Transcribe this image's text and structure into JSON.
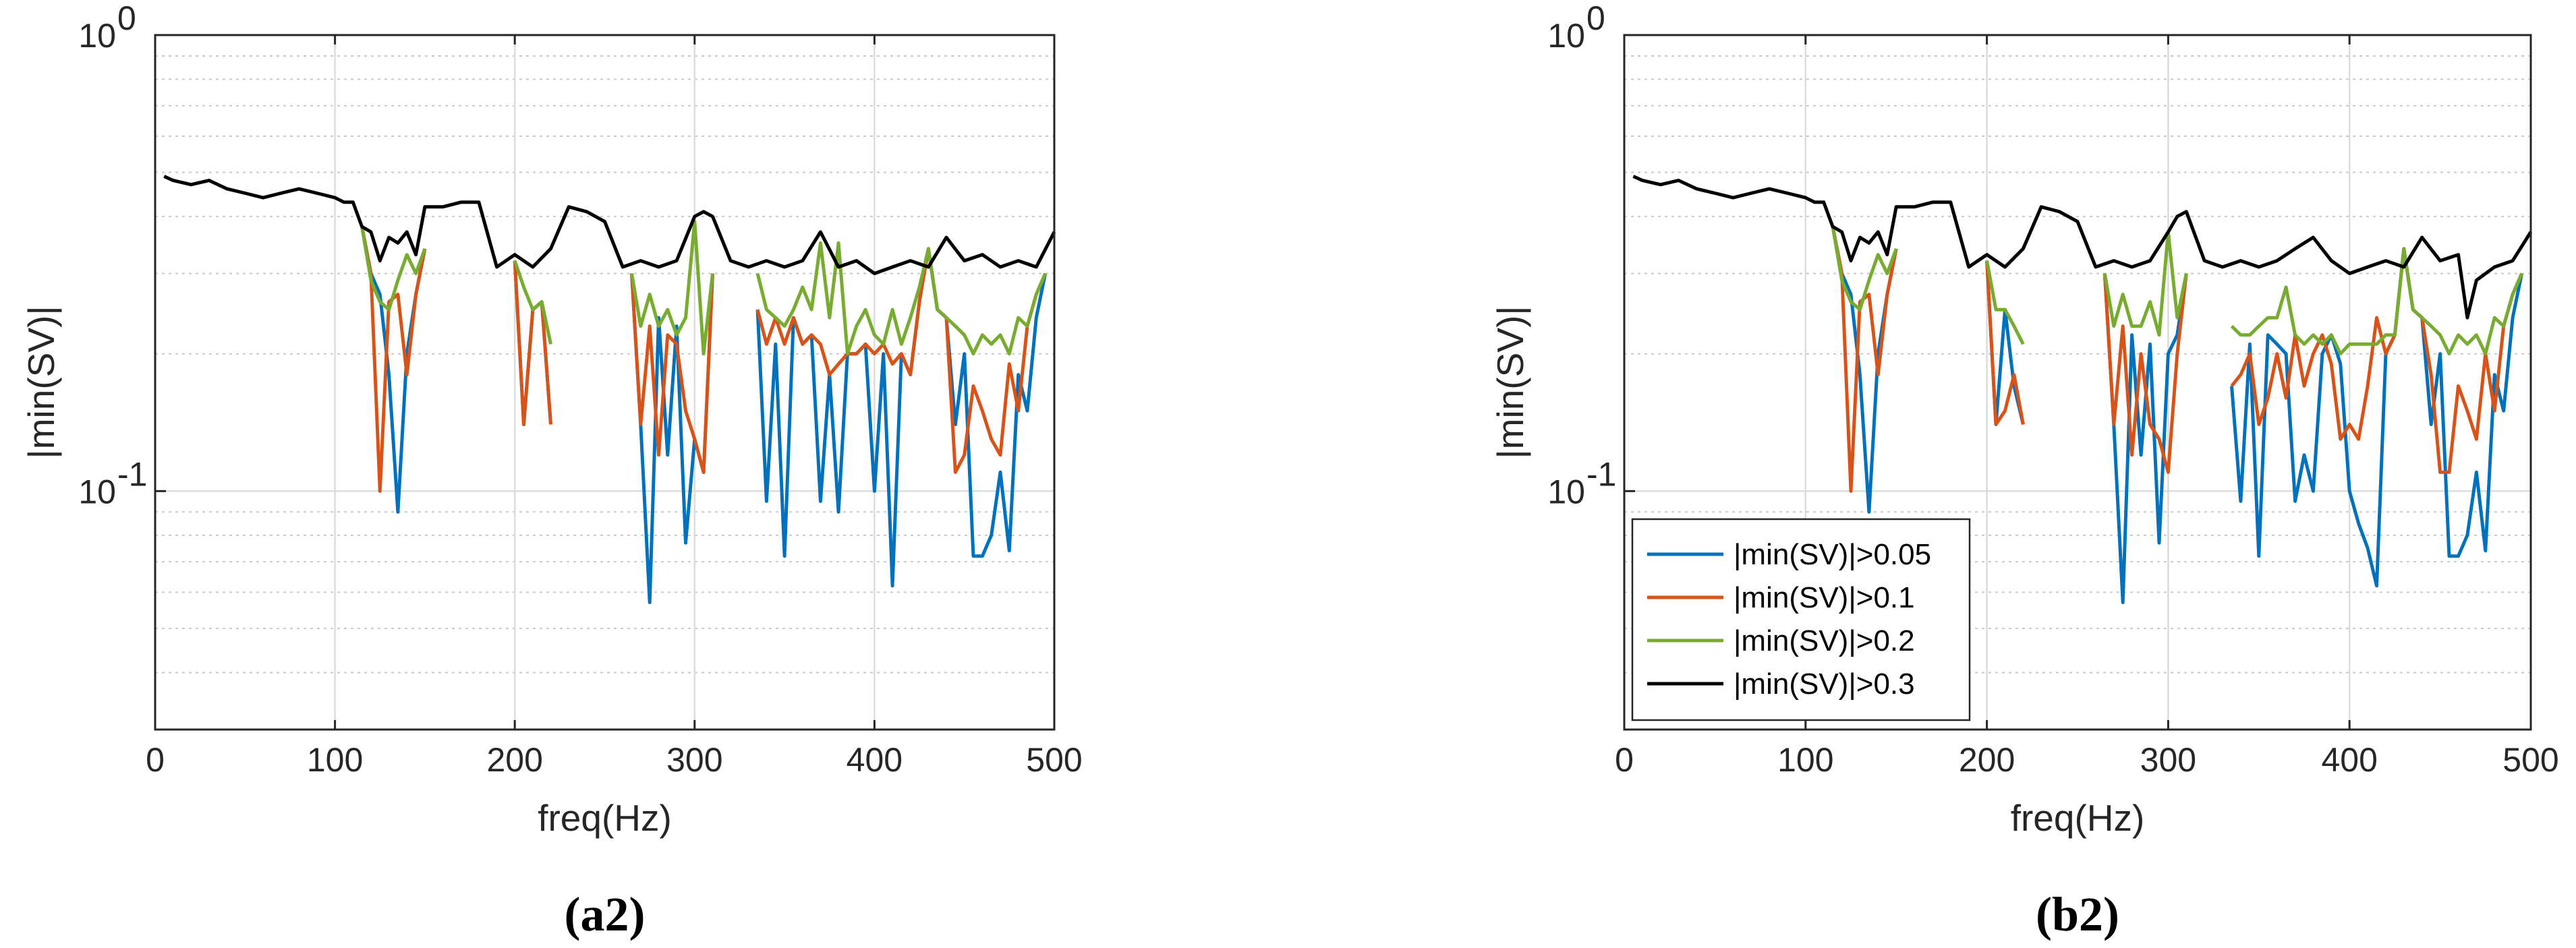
{
  "chart_data": [
    {
      "type": "line",
      "panel_label": "(a2)",
      "xlabel": "freq(Hz)",
      "ylabel": "|min(SV)|",
      "xlim": [
        0,
        500
      ],
      "ylim": [
        0.03,
        1
      ],
      "yscale": "log",
      "xticks": [
        0,
        100,
        200,
        300,
        400,
        500
      ],
      "yticks": [
        {
          "value": 0.1,
          "base": "10",
          "exp": "-1"
        },
        {
          "value": 1,
          "base": "10",
          "exp": "0"
        }
      ],
      "grid": true,
      "legend": null,
      "series": [
        {
          "name": "|min(SV)|>0.05",
          "color": "#0072BD",
          "x": [
            115,
            120,
            125,
            130,
            135,
            140,
            145,
            150,
            null,
            200,
            205,
            210,
            215,
            220,
            null,
            265,
            270,
            275,
            280,
            285,
            290,
            295,
            300,
            305,
            310,
            null,
            335,
            340,
            345,
            350,
            355,
            360,
            365,
            370,
            375,
            380,
            385,
            390,
            395,
            400,
            405,
            410,
            415,
            420,
            425,
            430,
            435,
            440,
            445,
            450,
            455,
            460,
            465,
            470,
            475,
            480,
            485,
            490,
            495
          ],
          "y": [
            0.38,
            0.3,
            0.27,
            0.18,
            0.09,
            0.2,
            0.27,
            0.34,
            null,
            0.32,
            0.14,
            0.25,
            0.26,
            0.14,
            null,
            0.3,
            0.14,
            0.057,
            0.24,
            0.12,
            0.23,
            0.077,
            0.13,
            0.11,
            0.3,
            null,
            0.25,
            0.095,
            0.21,
            0.072,
            0.24,
            0.21,
            0.22,
            0.095,
            0.18,
            0.09,
            0.2,
            0.2,
            0.21,
            0.1,
            0.2,
            0.062,
            0.2,
            0.18,
            0.26,
            0.34,
            0.25,
            0.24,
            0.14,
            0.2,
            0.072,
            0.072,
            0.08,
            0.11,
            0.074,
            0.18,
            0.15,
            0.24,
            0.3
          ]
        },
        {
          "name": "|min(SV)|>0.1",
          "color": "#D95319",
          "x": [
            115,
            120,
            125,
            130,
            135,
            140,
            145,
            150,
            null,
            200,
            205,
            210,
            215,
            220,
            null,
            265,
            270,
            275,
            280,
            285,
            290,
            295,
            300,
            305,
            310,
            null,
            335,
            340,
            345,
            350,
            355,
            360,
            365,
            370,
            375,
            380,
            385,
            390,
            395,
            400,
            405,
            410,
            415,
            420,
            425,
            430,
            435,
            440,
            445,
            450,
            455,
            460,
            465,
            470,
            475,
            480,
            485,
            490,
            495
          ],
          "y": [
            0.38,
            0.3,
            0.1,
            0.26,
            0.27,
            0.18,
            0.27,
            0.34,
            null,
            0.32,
            0.14,
            0.25,
            0.26,
            0.14,
            null,
            0.3,
            0.14,
            0.23,
            0.12,
            0.22,
            0.21,
            0.15,
            0.13,
            0.11,
            0.3,
            null,
            0.25,
            0.21,
            0.24,
            0.21,
            0.24,
            0.21,
            0.22,
            0.21,
            0.18,
            0.19,
            0.2,
            0.2,
            0.21,
            0.2,
            0.21,
            0.19,
            0.2,
            0.18,
            0.26,
            0.34,
            0.25,
            0.24,
            0.11,
            0.12,
            0.17,
            0.15,
            0.13,
            0.12,
            0.19,
            0.15,
            0.23,
            0.27,
            0.3
          ]
        },
        {
          "name": "|min(SV)|>0.2",
          "color": "#77AC30",
          "x": [
            115,
            120,
            125,
            130,
            135,
            140,
            145,
            150,
            null,
            200,
            205,
            210,
            215,
            220,
            null,
            265,
            270,
            275,
            280,
            285,
            290,
            295,
            300,
            305,
            310,
            null,
            335,
            340,
            345,
            350,
            355,
            360,
            365,
            370,
            375,
            380,
            385,
            390,
            395,
            400,
            405,
            410,
            415,
            420,
            425,
            430,
            435,
            440,
            445,
            450,
            455,
            460,
            465,
            470,
            475,
            480,
            485,
            490,
            495
          ],
          "y": [
            0.38,
            0.29,
            0.26,
            0.25,
            0.29,
            0.33,
            0.3,
            0.34,
            null,
            0.32,
            0.28,
            0.25,
            0.26,
            0.21,
            null,
            0.3,
            0.23,
            0.27,
            0.23,
            0.25,
            0.22,
            0.24,
            0.39,
            0.2,
            0.3,
            null,
            0.3,
            0.25,
            0.24,
            0.23,
            0.25,
            0.28,
            0.25,
            0.35,
            0.24,
            0.35,
            0.2,
            0.23,
            0.25,
            0.22,
            0.21,
            0.25,
            0.21,
            0.24,
            0.28,
            0.34,
            0.25,
            0.24,
            0.23,
            0.22,
            0.2,
            0.22,
            0.21,
            0.22,
            0.2,
            0.24,
            0.23,
            0.27,
            0.3
          ]
        },
        {
          "name": "|min(SV)|>0.3",
          "color": "#000000",
          "x": [
            5,
            10,
            20,
            30,
            40,
            50,
            60,
            70,
            80,
            90,
            100,
            105,
            110,
            115,
            120,
            125,
            130,
            135,
            140,
            145,
            150,
            160,
            170,
            180,
            190,
            200,
            210,
            220,
            230,
            240,
            250,
            260,
            270,
            280,
            290,
            300,
            305,
            310,
            320,
            330,
            340,
            350,
            360,
            370,
            380,
            390,
            400,
            410,
            420,
            430,
            440,
            450,
            460,
            470,
            480,
            490,
            500
          ],
          "y": [
            0.49,
            0.48,
            0.47,
            0.48,
            0.46,
            0.45,
            0.44,
            0.45,
            0.46,
            0.45,
            0.44,
            0.43,
            0.43,
            0.38,
            0.37,
            0.32,
            0.36,
            0.35,
            0.37,
            0.33,
            0.42,
            0.42,
            0.43,
            0.43,
            0.31,
            0.33,
            0.31,
            0.34,
            0.42,
            0.41,
            0.39,
            0.31,
            0.32,
            0.31,
            0.32,
            0.4,
            0.41,
            0.4,
            0.32,
            0.31,
            0.32,
            0.31,
            0.32,
            0.37,
            0.31,
            0.32,
            0.3,
            0.31,
            0.32,
            0.31,
            0.36,
            0.32,
            0.33,
            0.31,
            0.32,
            0.31,
            0.37
          ]
        }
      ]
    },
    {
      "type": "line",
      "panel_label": "(b2)",
      "xlabel": "freq(Hz)",
      "ylabel": "|min(SV)|",
      "xlim": [
        0,
        500
      ],
      "ylim": [
        0.03,
        1
      ],
      "yscale": "log",
      "xticks": [
        0,
        100,
        200,
        300,
        400,
        500
      ],
      "yticks": [
        {
          "value": 0.1,
          "base": "10",
          "exp": "-1"
        },
        {
          "value": 1,
          "base": "10",
          "exp": "0"
        }
      ],
      "grid": true,
      "legend": "bottom-left",
      "series": [
        {
          "name": "|min(SV)|>0.05",
          "color": "#0072BD",
          "x": [
            115,
            120,
            125,
            130,
            135,
            140,
            145,
            150,
            null,
            200,
            205,
            210,
            215,
            220,
            null,
            265,
            270,
            275,
            280,
            285,
            290,
            295,
            300,
            305,
            310,
            null,
            335,
            340,
            345,
            350,
            355,
            360,
            365,
            370,
            375,
            380,
            385,
            390,
            395,
            400,
            405,
            410,
            415,
            420,
            425,
            430,
            435,
            440,
            445,
            450,
            455,
            460,
            465,
            470,
            475,
            480,
            485,
            490,
            495
          ],
          "y": [
            0.38,
            0.3,
            0.27,
            0.18,
            0.09,
            0.2,
            0.27,
            0.34,
            null,
            0.32,
            0.14,
            0.25,
            0.17,
            0.14,
            null,
            0.3,
            0.14,
            0.057,
            0.22,
            0.12,
            0.21,
            0.077,
            0.2,
            0.22,
            0.3,
            null,
            0.17,
            0.095,
            0.21,
            0.072,
            0.22,
            0.21,
            0.2,
            0.095,
            0.12,
            0.1,
            0.2,
            0.22,
            0.19,
            0.1,
            0.085,
            0.075,
            0.062,
            0.2,
            0.22,
            0.34,
            0.25,
            0.24,
            0.14,
            0.2,
            0.072,
            0.072,
            0.08,
            0.11,
            0.074,
            0.18,
            0.15,
            0.24,
            0.3
          ]
        },
        {
          "name": "|min(SV)|>0.1",
          "color": "#D95319",
          "x": [
            115,
            120,
            125,
            130,
            135,
            140,
            145,
            150,
            null,
            200,
            205,
            210,
            215,
            220,
            null,
            265,
            270,
            275,
            280,
            285,
            290,
            295,
            300,
            305,
            310,
            null,
            335,
            340,
            345,
            350,
            355,
            360,
            365,
            370,
            375,
            380,
            385,
            390,
            395,
            400,
            405,
            410,
            415,
            420,
            425,
            430,
            435,
            440,
            445,
            450,
            455,
            460,
            465,
            470,
            475,
            480,
            485,
            490,
            495
          ],
          "y": [
            0.38,
            0.3,
            0.1,
            0.26,
            0.27,
            0.18,
            0.27,
            0.34,
            null,
            0.32,
            0.14,
            0.15,
            0.18,
            0.14,
            null,
            0.3,
            0.14,
            0.23,
            0.12,
            0.2,
            0.14,
            0.13,
            0.11,
            0.2,
            0.3,
            null,
            0.17,
            0.18,
            0.2,
            0.14,
            0.16,
            0.2,
            0.16,
            0.22,
            0.17,
            0.2,
            0.22,
            0.19,
            0.13,
            0.14,
            0.13,
            0.17,
            0.24,
            0.2,
            0.22,
            0.34,
            0.25,
            0.24,
            0.18,
            0.11,
            0.11,
            0.17,
            0.15,
            0.13,
            0.2,
            0.15,
            0.23,
            0.27,
            0.3
          ]
        },
        {
          "name": "|min(SV)|>0.2",
          "color": "#77AC30",
          "x": [
            115,
            120,
            125,
            130,
            135,
            140,
            145,
            150,
            null,
            200,
            205,
            210,
            215,
            220,
            null,
            265,
            270,
            275,
            280,
            285,
            290,
            295,
            300,
            305,
            310,
            null,
            335,
            340,
            345,
            350,
            355,
            360,
            365,
            370,
            375,
            380,
            385,
            390,
            395,
            400,
            405,
            410,
            415,
            420,
            425,
            430,
            435,
            440,
            445,
            450,
            455,
            460,
            465,
            470,
            475,
            480,
            485,
            490,
            495
          ],
          "y": [
            0.38,
            0.29,
            0.26,
            0.25,
            0.29,
            0.33,
            0.3,
            0.34,
            null,
            0.32,
            0.25,
            0.25,
            0.23,
            0.21,
            null,
            0.3,
            0.23,
            0.27,
            0.23,
            0.23,
            0.26,
            0.22,
            0.37,
            0.24,
            0.3,
            null,
            0.23,
            0.22,
            0.22,
            0.23,
            0.24,
            0.24,
            0.28,
            0.22,
            0.21,
            0.22,
            0.21,
            0.22,
            0.2,
            0.21,
            0.21,
            0.21,
            0.21,
            0.22,
            0.22,
            0.34,
            0.25,
            0.24,
            0.23,
            0.22,
            0.2,
            0.22,
            0.21,
            0.22,
            0.2,
            0.24,
            0.23,
            0.27,
            0.3
          ]
        },
        {
          "name": "|min(SV)|>0.3",
          "color": "#000000",
          "x": [
            5,
            10,
            20,
            30,
            40,
            50,
            60,
            70,
            80,
            90,
            100,
            105,
            110,
            115,
            120,
            125,
            130,
            135,
            140,
            145,
            150,
            160,
            170,
            180,
            190,
            200,
            210,
            220,
            230,
            240,
            250,
            260,
            270,
            280,
            290,
            300,
            305,
            310,
            320,
            330,
            340,
            350,
            360,
            370,
            380,
            390,
            400,
            410,
            420,
            430,
            440,
            450,
            460,
            465,
            470,
            480,
            490,
            500
          ],
          "y": [
            0.49,
            0.48,
            0.47,
            0.48,
            0.46,
            0.45,
            0.44,
            0.45,
            0.46,
            0.45,
            0.44,
            0.43,
            0.43,
            0.38,
            0.37,
            0.32,
            0.36,
            0.35,
            0.37,
            0.33,
            0.42,
            0.42,
            0.43,
            0.43,
            0.31,
            0.33,
            0.31,
            0.34,
            0.42,
            0.41,
            0.39,
            0.31,
            0.32,
            0.31,
            0.32,
            0.37,
            0.4,
            0.41,
            0.32,
            0.31,
            0.32,
            0.31,
            0.32,
            0.34,
            0.36,
            0.32,
            0.3,
            0.31,
            0.32,
            0.31,
            0.36,
            0.32,
            0.33,
            0.24,
            0.29,
            0.31,
            0.32,
            0.37
          ]
        }
      ]
    }
  ]
}
